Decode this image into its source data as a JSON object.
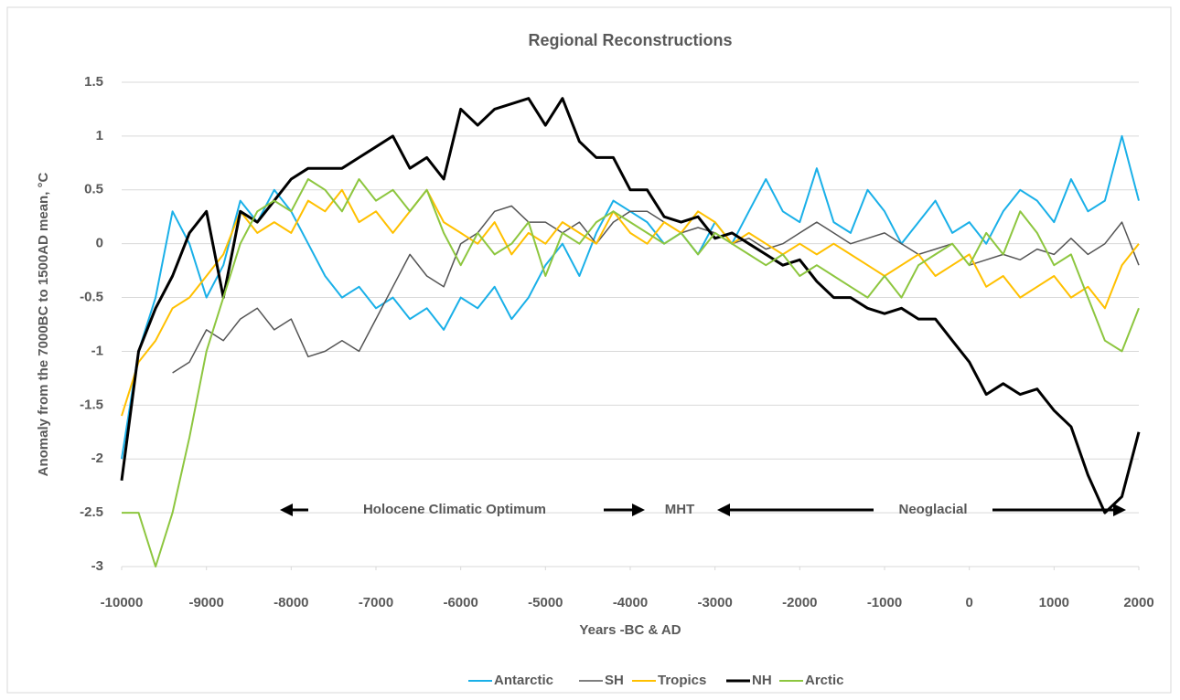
{
  "chart_data": {
    "type": "line",
    "title": "Regional Reconstructions",
    "xlabel": "Years -BC & AD",
    "ylabel": "Anomaly from the 7000BC to 1500AD mean, °C",
    "annotations": [
      "Holocene Climatic Optimum",
      "MHT",
      "Neoglacial"
    ],
    "xlim": [
      -10000,
      2000
    ],
    "xticks": [
      -10000,
      -9000,
      -8000,
      -7000,
      -6000,
      -5000,
      -4000,
      -3000,
      -2000,
      -1000,
      0,
      1000,
      2000
    ],
    "ylim": [
      -3,
      1.5
    ],
    "yticks": [
      1.5,
      1,
      0.5,
      0,
      -0.5,
      -1,
      -1.5,
      -2,
      -2.5,
      -3
    ],
    "grid": true,
    "legend": "bottom",
    "x": [
      -10000,
      -9800,
      -9600,
      -9400,
      -9200,
      -9000,
      -8800,
      -8600,
      -8400,
      -8200,
      -8000,
      -7800,
      -7600,
      -7400,
      -7200,
      -7000,
      -6800,
      -6600,
      -6400,
      -6200,
      -6000,
      -5800,
      -5600,
      -5400,
      -5200,
      -5000,
      -4800,
      -4600,
      -4400,
      -4200,
      -4000,
      -3800,
      -3600,
      -3400,
      -3200,
      -3000,
      -2800,
      -2600,
      -2400,
      -2200,
      -2000,
      -1800,
      -1600,
      -1400,
      -1200,
      -1000,
      -800,
      -600,
      -400,
      -200,
      0,
      200,
      400,
      600,
      800,
      1000,
      1200,
      1400,
      1600,
      1800,
      2000
    ],
    "series": [
      {
        "name": "Antarctic",
        "color": "#1ab0e8",
        "width": 2,
        "values": [
          -2.0,
          -1.0,
          -0.5,
          0.3,
          0.0,
          -0.5,
          -0.2,
          0.4,
          0.2,
          0.5,
          0.3,
          0.0,
          -0.3,
          -0.5,
          -0.4,
          -0.6,
          -0.5,
          -0.7,
          -0.6,
          -0.8,
          -0.5,
          -0.6,
          -0.4,
          -0.7,
          -0.5,
          -0.2,
          0.0,
          -0.3,
          0.1,
          0.4,
          0.3,
          0.2,
          0.0,
          0.1,
          -0.1,
          0.2,
          0.0,
          0.3,
          0.6,
          0.3,
          0.2,
          0.7,
          0.2,
          0.1,
          0.5,
          0.3,
          0.0,
          0.2,
          0.4,
          0.1,
          0.2,
          0.0,
          0.3,
          0.5,
          0.4,
          0.2,
          0.6,
          0.3,
          0.4,
          1.0,
          0.4
        ]
      },
      {
        "name": "SH",
        "color": "#555555",
        "width": 1.5,
        "values": [
          null,
          null,
          null,
          -1.2,
          -1.1,
          -0.8,
          -0.9,
          -0.7,
          -0.6,
          -0.8,
          -0.7,
          -1.05,
          -1.0,
          -0.9,
          -1.0,
          -0.7,
          -0.4,
          -0.1,
          -0.3,
          -0.4,
          0.0,
          0.1,
          0.3,
          0.35,
          0.2,
          0.2,
          0.1,
          0.2,
          0.0,
          0.2,
          0.3,
          0.3,
          0.2,
          0.1,
          0.15,
          0.1,
          0.0,
          0.05,
          -0.05,
          0.0,
          0.1,
          0.2,
          0.1,
          0.0,
          0.05,
          0.1,
          0.0,
          -0.1,
          -0.05,
          0.0,
          -0.2,
          -0.15,
          -0.1,
          -0.15,
          -0.05,
          -0.1,
          0.05,
          -0.1,
          0.0,
          0.2,
          -0.2
        ]
      },
      {
        "name": "Tropics",
        "color": "#ffc000",
        "width": 2,
        "values": [
          -1.6,
          -1.1,
          -0.9,
          -0.6,
          -0.5,
          -0.3,
          -0.1,
          0.3,
          0.1,
          0.2,
          0.1,
          0.4,
          0.3,
          0.5,
          0.2,
          0.3,
          0.1,
          0.3,
          0.5,
          0.2,
          0.1,
          0.0,
          0.2,
          -0.1,
          0.1,
          0.0,
          0.2,
          0.1,
          0.0,
          0.3,
          0.1,
          0.0,
          0.2,
          0.1,
          0.3,
          0.2,
          0.0,
          0.1,
          0.0,
          -0.1,
          0.0,
          -0.1,
          0.0,
          -0.1,
          -0.2,
          -0.3,
          -0.2,
          -0.1,
          -0.3,
          -0.2,
          -0.1,
          -0.4,
          -0.3,
          -0.5,
          -0.4,
          -0.3,
          -0.5,
          -0.4,
          -0.6,
          -0.2,
          0.0
        ]
      },
      {
        "name": "NH",
        "color": "#000000",
        "width": 3,
        "values": [
          -2.2,
          -1.0,
          -0.6,
          -0.3,
          0.1,
          0.3,
          -0.5,
          0.3,
          0.2,
          0.4,
          0.6,
          0.7,
          0.7,
          0.7,
          0.8,
          0.9,
          1.0,
          0.7,
          0.8,
          0.6,
          1.25,
          1.1,
          1.25,
          1.3,
          1.35,
          1.1,
          1.35,
          0.95,
          0.8,
          0.8,
          0.5,
          0.5,
          0.25,
          0.2,
          0.25,
          0.05,
          0.1,
          0.0,
          -0.1,
          -0.2,
          -0.15,
          -0.35,
          -0.5,
          -0.5,
          -0.6,
          -0.65,
          -0.6,
          -0.7,
          -0.7,
          -0.9,
          -1.1,
          -1.4,
          -1.3,
          -1.4,
          -1.35,
          -1.55,
          -1.7,
          -2.15,
          -2.5,
          -2.35,
          -1.75
        ]
      },
      {
        "name": "Arctic",
        "color": "#8dc63f",
        "width": 2,
        "values": [
          -2.5,
          -2.5,
          -3.0,
          -2.5,
          -1.8,
          -1.0,
          -0.5,
          0.0,
          0.3,
          0.4,
          0.3,
          0.6,
          0.5,
          0.3,
          0.6,
          0.4,
          0.5,
          0.3,
          0.5,
          0.1,
          -0.2,
          0.1,
          -0.1,
          0.0,
          0.2,
          -0.3,
          0.1,
          0.0,
          0.2,
          0.3,
          0.2,
          0.1,
          0.0,
          0.1,
          -0.1,
          0.1,
          0.0,
          -0.1,
          -0.2,
          -0.1,
          -0.3,
          -0.2,
          -0.3,
          -0.4,
          -0.5,
          -0.3,
          -0.5,
          -0.2,
          -0.1,
          0.0,
          -0.2,
          0.1,
          -0.1,
          0.3,
          0.1,
          -0.2,
          -0.1,
          -0.5,
          -0.9,
          -1.0,
          -0.6
        ]
      }
    ]
  }
}
